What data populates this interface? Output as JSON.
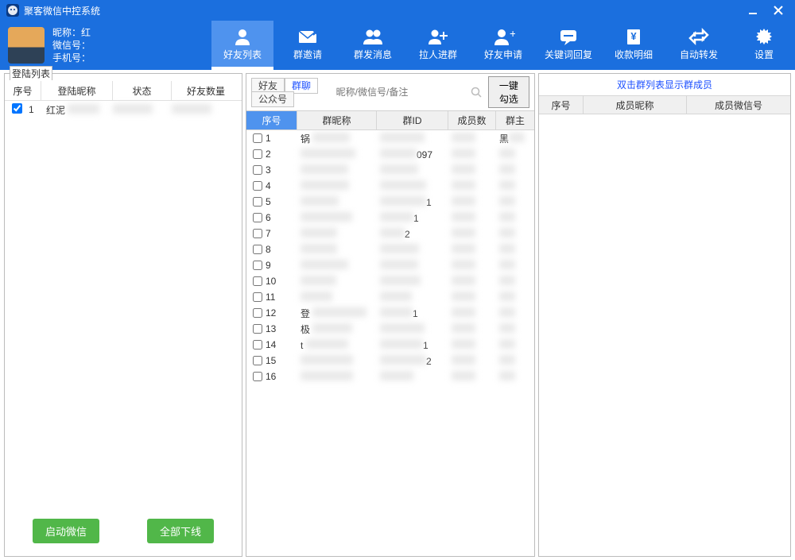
{
  "colors": {
    "primary": "#1b6fde",
    "primary_light": "#4f93ee",
    "btn_green": "#51b749",
    "link": "#1b4fff"
  },
  "titlebar": {
    "title": "聚客微信中控系统"
  },
  "user": {
    "nick_label": "昵称：",
    "nick_value": "红",
    "wechat_label": "微信号：",
    "wechat_value": "",
    "phone_label": "手机号：",
    "phone_value": ""
  },
  "nav": [
    {
      "key": "friends",
      "label": "好友列表",
      "active": true
    },
    {
      "key": "invite",
      "label": "群邀请"
    },
    {
      "key": "broadcast",
      "label": "群发消息"
    },
    {
      "key": "pull",
      "label": "拉人进群"
    },
    {
      "key": "apply",
      "label": "好友申请"
    },
    {
      "key": "keyword",
      "label": "关键词回复"
    },
    {
      "key": "income",
      "label": "收款明细"
    },
    {
      "key": "forward",
      "label": "自动转发"
    },
    {
      "key": "settings",
      "label": "设置"
    }
  ],
  "left": {
    "panel_title": "登陆列表",
    "headers": {
      "seq": "序号",
      "nick": "登陆昵称",
      "status": "状态",
      "count": "好友数量"
    },
    "rows": [
      {
        "seq": "1",
        "nick": "红泥",
        "status": "",
        "count": "",
        "checked": true
      }
    ],
    "btn_start": "启动微信",
    "btn_offline": "全部下线"
  },
  "center": {
    "tabs": [
      {
        "label": "好友",
        "active": false
      },
      {
        "label": "群聊",
        "active": true
      },
      {
        "label": "公众号",
        "active": false
      }
    ],
    "search_placeholder": "昵称/微信号/备注",
    "check_all": "一键勾选",
    "headers": {
      "seq": "序号",
      "gname": "群昵称",
      "gid": "群ID",
      "members": "成员数",
      "owner": "群主"
    },
    "rows": [
      {
        "seq": "1",
        "gname": "锅",
        "gid": "",
        "owner": "黑"
      },
      {
        "seq": "2",
        "gname": "",
        "gid": "097",
        "owner": ""
      },
      {
        "seq": "3",
        "gname": "",
        "gid": "",
        "owner": ""
      },
      {
        "seq": "4",
        "gname": "",
        "gid": "",
        "owner": ""
      },
      {
        "seq": "5",
        "gname": "",
        "gid": "1",
        "owner": ""
      },
      {
        "seq": "6",
        "gname": "",
        "gid": "1",
        "owner": ""
      },
      {
        "seq": "7",
        "gname": "",
        "gid": "2",
        "owner": ""
      },
      {
        "seq": "8",
        "gname": "",
        "gid": "",
        "owner": ""
      },
      {
        "seq": "9",
        "gname": "",
        "gid": "",
        "owner": ""
      },
      {
        "seq": "10",
        "gname": "",
        "gid": "",
        "owner": ""
      },
      {
        "seq": "11",
        "gname": "",
        "gid": "",
        "owner": ""
      },
      {
        "seq": "12",
        "gname": "登",
        "gid": "1",
        "owner": ""
      },
      {
        "seq": "13",
        "gname": "极",
        "gid": "",
        "owner": ""
      },
      {
        "seq": "14",
        "gname": "t",
        "gid": "1",
        "owner": ""
      },
      {
        "seq": "15",
        "gname": "",
        "gid": "2",
        "owner": ""
      },
      {
        "seq": "16",
        "gname": "",
        "gid": "",
        "owner": ""
      }
    ]
  },
  "right": {
    "hint": "双击群列表显示群成员",
    "headers": {
      "seq": "序号",
      "nick": "成员昵称",
      "wx": "成员微信号"
    }
  }
}
